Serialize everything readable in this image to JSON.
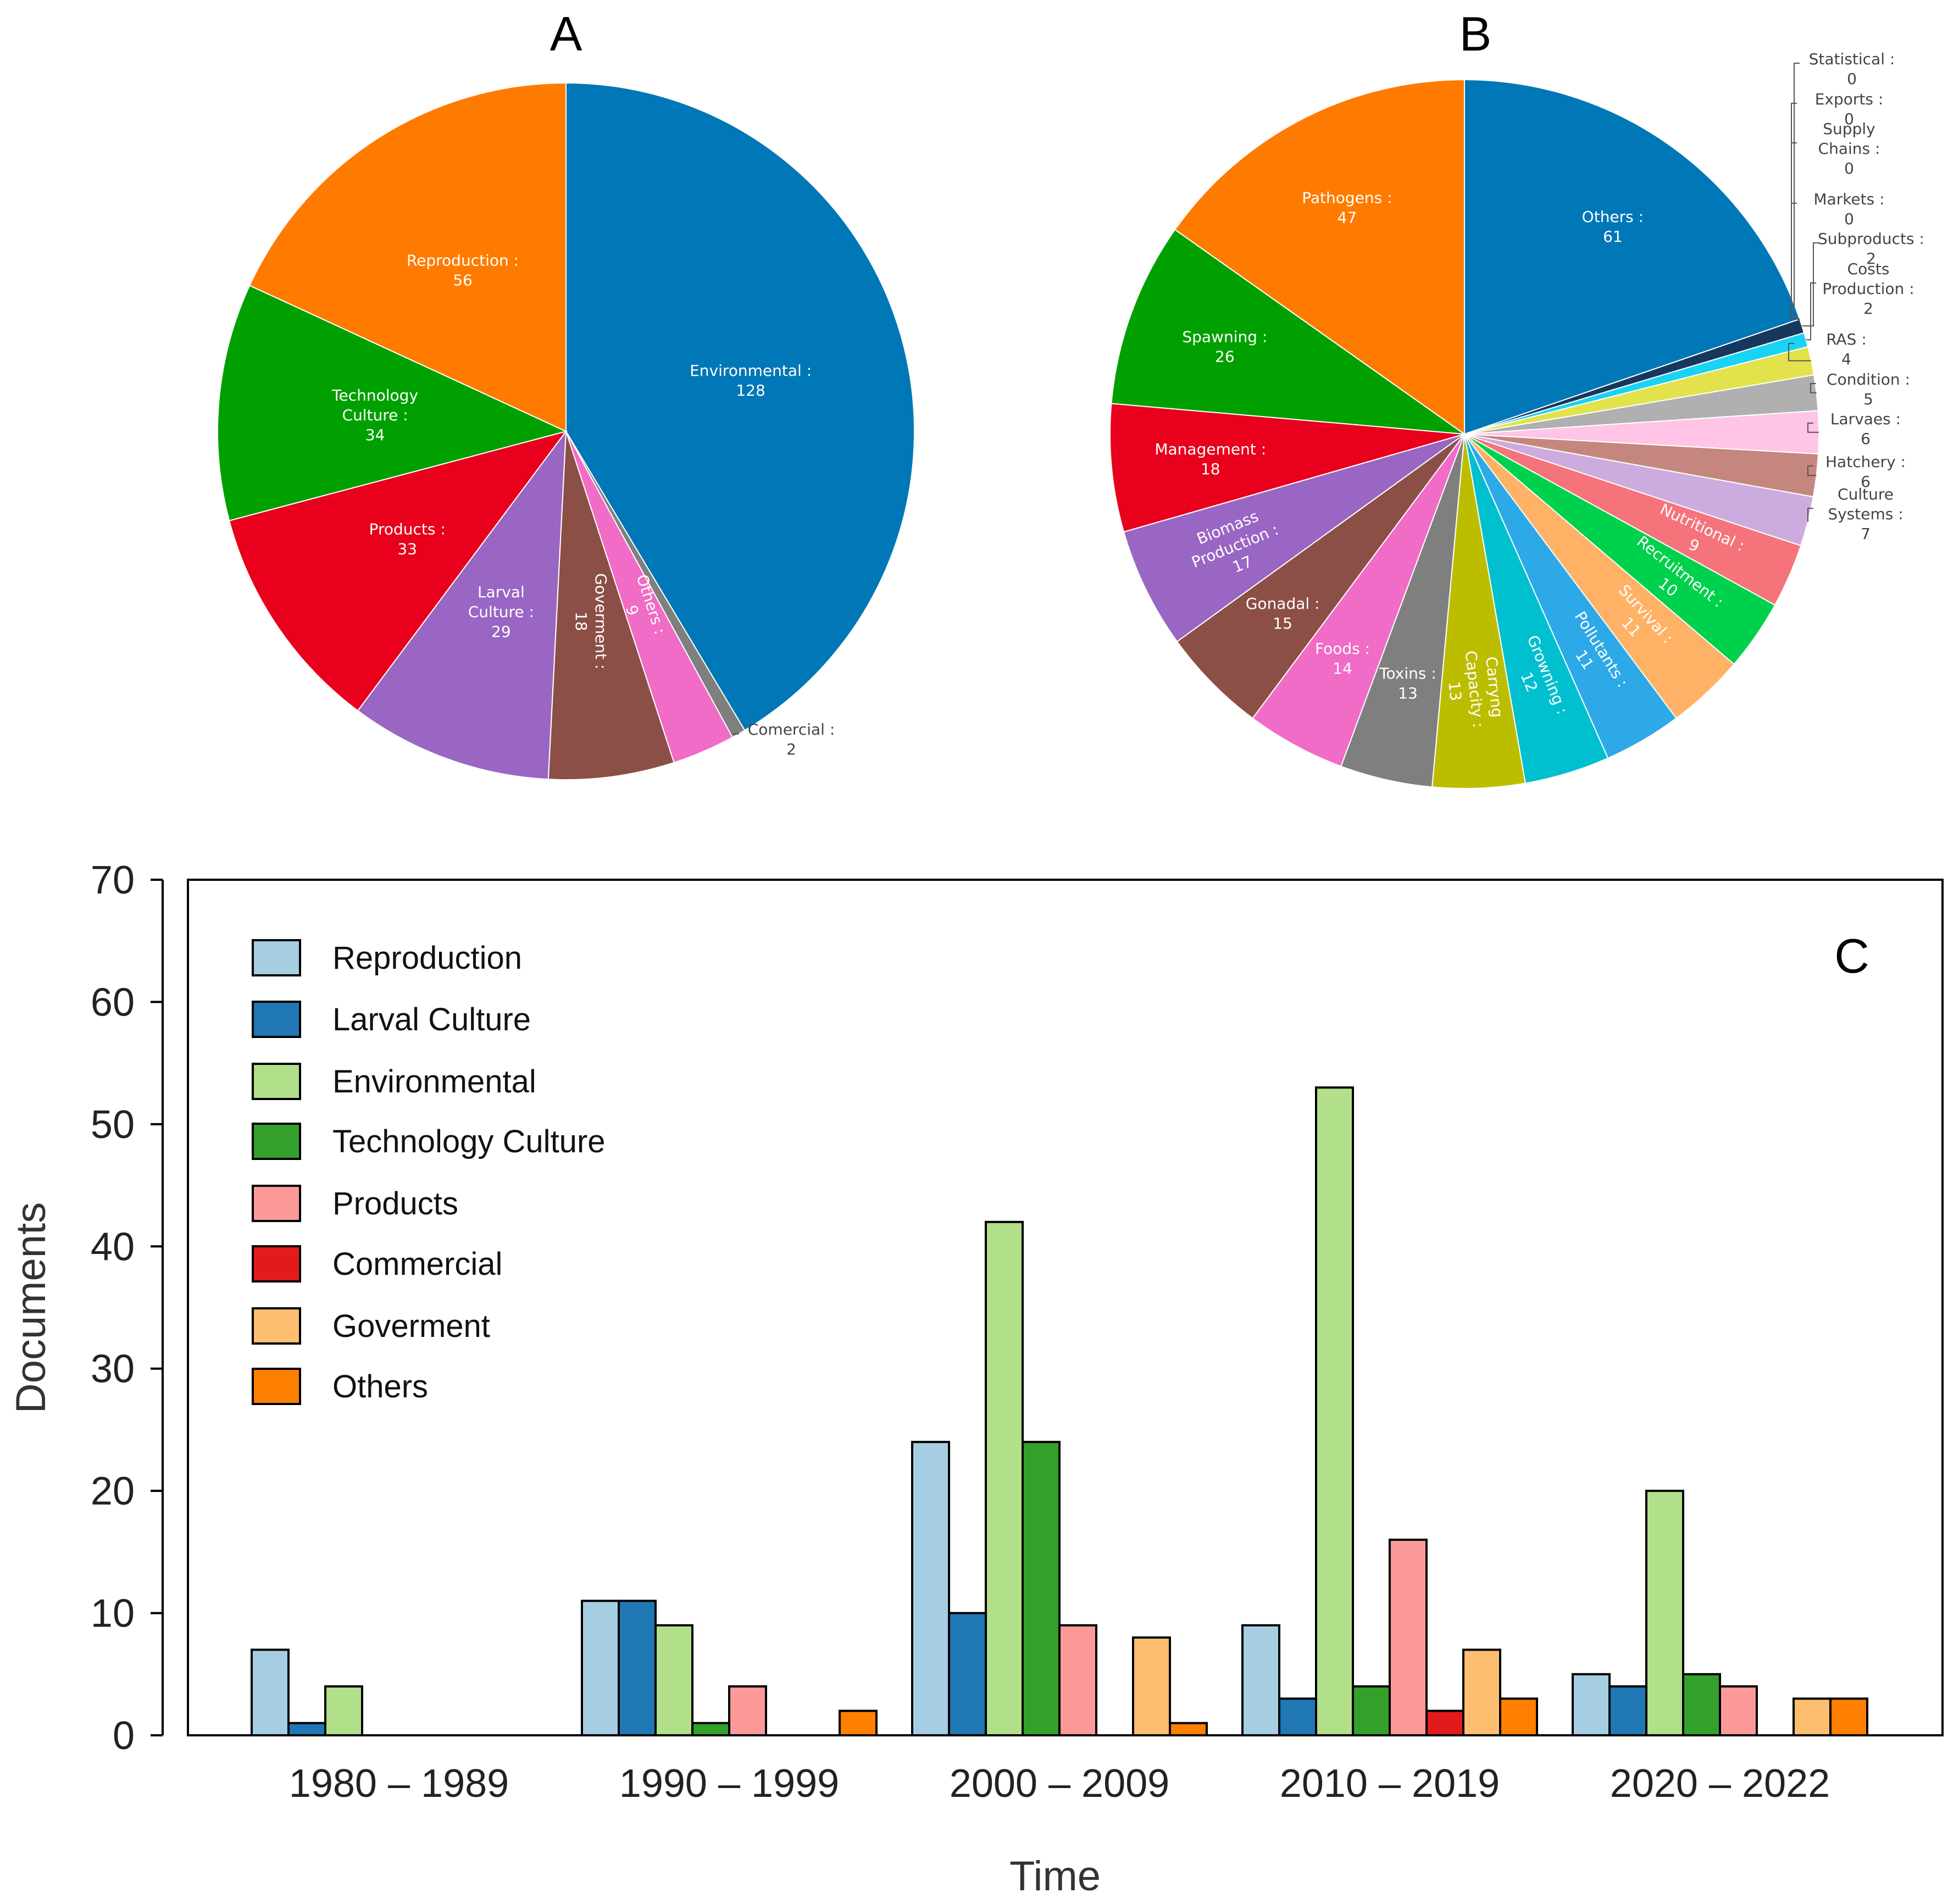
{
  "chart_data": [
    {
      "id": "A",
      "type": "pie",
      "title": "A",
      "slices": [
        {
          "label": "Environmental",
          "value": 128,
          "color": "#0077b6"
        },
        {
          "label": "Comercial",
          "value": 2,
          "color": "#7f7f7f"
        },
        {
          "label": "Others",
          "value": 9,
          "color": "#f06cc6"
        },
        {
          "label": "Goverment",
          "value": 18,
          "color": "#8c4f45"
        },
        {
          "label": "Larval Culture",
          "value": 29,
          "color": "#9966c3"
        },
        {
          "label": "Products",
          "value": 33,
          "color": "#e8001c"
        },
        {
          "label": "Technology Culture",
          "value": 34,
          "color": "#00a000"
        },
        {
          "label": "Reproduction",
          "value": 56,
          "color": "#ff7b00"
        }
      ]
    },
    {
      "id": "B",
      "type": "pie",
      "title": "B",
      "slices": [
        {
          "label": "Others",
          "value": 61,
          "color": "#0077b6"
        },
        {
          "label": "Statistical",
          "value": 0,
          "color": "#0a2a4a"
        },
        {
          "label": "Exports",
          "value": 0,
          "color": "#333333"
        },
        {
          "label": "Supply Chains",
          "value": 0,
          "color": "#555555"
        },
        {
          "label": "Markets",
          "value": 0,
          "color": "#777777"
        },
        {
          "label": "Subproducts",
          "value": 2,
          "color": "#17385e"
        },
        {
          "label": "Costs Production",
          "value": 2,
          "color": "#19d3f3"
        },
        {
          "label": "RAS",
          "value": 4,
          "color": "#e2e24c"
        },
        {
          "label": "Condition",
          "value": 5,
          "color": "#b0b0b0"
        },
        {
          "label": "Larvaes",
          "value": 6,
          "color": "#ffc4e6"
        },
        {
          "label": "Hatchery",
          "value": 6,
          "color": "#c5877d"
        },
        {
          "label": "Culture Systems",
          "value": 7,
          "color": "#ccacdf"
        },
        {
          "label": "Nutritional",
          "value": 9,
          "color": "#f5737a"
        },
        {
          "label": "Recruitment",
          "value": 10,
          "color": "#00d14c"
        },
        {
          "label": "Survival",
          "value": 11,
          "color": "#ffb266"
        },
        {
          "label": "Pollutants",
          "value": 11,
          "color": "#2da9e7"
        },
        {
          "label": "Growning",
          "value": 12,
          "color": "#00c0d0"
        },
        {
          "label": "Carryng Capacity",
          "value": 13,
          "color": "#bdbd00"
        },
        {
          "label": "Toxins",
          "value": 13,
          "color": "#7f7f7f"
        },
        {
          "label": "Foods",
          "value": 14,
          "color": "#f06cc6"
        },
        {
          "label": "Gonadal",
          "value": 15,
          "color": "#8c4f45"
        },
        {
          "label": "Biomass Production",
          "value": 17,
          "color": "#9966c3"
        },
        {
          "label": "Management",
          "value": 18,
          "color": "#e8001c"
        },
        {
          "label": "Spawning",
          "value": 26,
          "color": "#00a000"
        },
        {
          "label": "Pathogens",
          "value": 47,
          "color": "#ff7b00"
        }
      ]
    },
    {
      "id": "C",
      "type": "bar",
      "title": "C",
      "xlabel": "Time",
      "ylabel": "Documents",
      "ylim": [
        0,
        70
      ],
      "yticks": [
        0,
        10,
        20,
        30,
        40,
        50,
        60,
        70
      ],
      "categories": [
        "1980 – 1989",
        "1990 – 1999",
        "2000 – 2009",
        "2010 – 2019",
        "2020 – 2022"
      ],
      "legend_position": "top-left",
      "series": [
        {
          "name": "Reproduction",
          "color": "#a6cee3",
          "values": [
            7,
            11,
            24,
            9,
            5
          ]
        },
        {
          "name": "Larval Culture",
          "color": "#1f78b4",
          "values": [
            1,
            11,
            10,
            3,
            4
          ]
        },
        {
          "name": "Environmental",
          "color": "#b2df8a",
          "values": [
            4,
            9,
            42,
            53,
            20
          ]
        },
        {
          "name": "Technology Culture",
          "color": "#33a02c",
          "values": [
            0,
            1,
            24,
            4,
            5
          ]
        },
        {
          "name": "Products",
          "color": "#fb9a99",
          "values": [
            0,
            4,
            9,
            16,
            4
          ]
        },
        {
          "name": "Commercial",
          "color": "#e31a1c",
          "values": [
            0,
            0,
            0,
            2,
            0
          ]
        },
        {
          "name": "Goverment",
          "color": "#fdbf6f",
          "values": [
            0,
            0,
            8,
            7,
            3
          ]
        },
        {
          "name": "Others",
          "color": "#ff7f00",
          "values": [
            0,
            2,
            1,
            3,
            3
          ]
        }
      ]
    }
  ]
}
